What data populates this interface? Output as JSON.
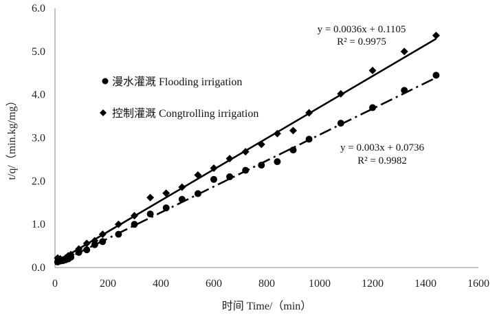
{
  "chart_data": {
    "type": "scatter",
    "title": "",
    "xlabel": "时间 Time/（min）",
    "ylabel": "t/q/（min.kg/mg）",
    "xlim": [
      0,
      1600
    ],
    "ylim": [
      0,
      6
    ],
    "xticks": [
      "0",
      "200",
      "400",
      "600",
      "800",
      "1000",
      "1200",
      "1400",
      "1600"
    ],
    "yticks": [
      "0.0",
      "1.0",
      "2.0",
      "3.0",
      "4.0",
      "5.0",
      "6.0"
    ],
    "series": [
      {
        "name": "漫水灌溉 Flooding irrigation",
        "marker": "circle",
        "color": "#000000",
        "x": [
          10,
          20,
          30,
          40,
          50,
          60,
          90,
          120,
          150,
          180,
          240,
          300,
          360,
          420,
          480,
          540,
          600,
          660,
          720,
          780,
          840,
          900,
          960,
          1080,
          1200,
          1320,
          1440
        ],
        "y": [
          0.13,
          0.15,
          0.16,
          0.18,
          0.2,
          0.24,
          0.35,
          0.41,
          0.53,
          0.6,
          0.77,
          1.0,
          1.24,
          1.38,
          1.58,
          1.71,
          2.04,
          2.1,
          2.25,
          2.37,
          2.45,
          2.72,
          2.97,
          3.34,
          3.7,
          4.1,
          4.45
        ],
        "trendline": {
          "slope": 0.003,
          "intercept": 0.0736,
          "style": "dash-dot",
          "equation": "y = 0.003x + 0.0736",
          "r2": "R² = 0.9982"
        }
      },
      {
        "name": "控制灌溉 Congtrolling irrigation",
        "marker": "diamond",
        "color": "#000000",
        "x": [
          10,
          20,
          30,
          40,
          50,
          60,
          90,
          120,
          150,
          180,
          240,
          300,
          360,
          420,
          480,
          540,
          600,
          660,
          720,
          780,
          840,
          900,
          960,
          1080,
          1200,
          1320,
          1440
        ],
        "y": [
          0.22,
          0.2,
          0.18,
          0.22,
          0.27,
          0.3,
          0.43,
          0.56,
          0.62,
          0.77,
          1.0,
          1.2,
          1.62,
          1.72,
          1.86,
          2.14,
          2.3,
          2.52,
          2.68,
          2.85,
          3.1,
          3.17,
          3.58,
          4.02,
          4.56,
          5.0,
          5.37
        ],
        "trendline": {
          "slope": 0.0036,
          "intercept": 0.1105,
          "style": "solid",
          "equation": "y = 0.0036x + 0.1105",
          "r2": "R² = 0.9975"
        }
      }
    ],
    "legend_position": "upper-left"
  }
}
